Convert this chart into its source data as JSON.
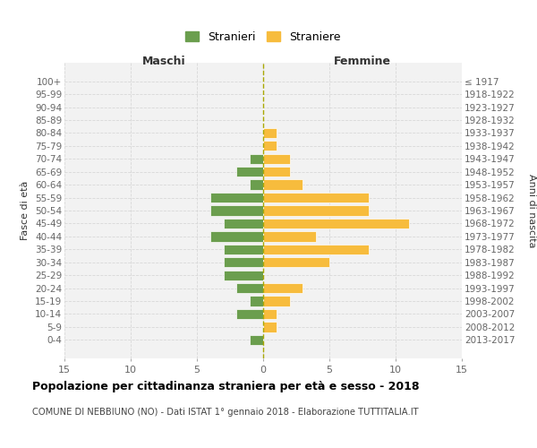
{
  "age_groups": [
    "0-4",
    "5-9",
    "10-14",
    "15-19",
    "20-24",
    "25-29",
    "30-34",
    "35-39",
    "40-44",
    "45-49",
    "50-54",
    "55-59",
    "60-64",
    "65-69",
    "70-74",
    "75-79",
    "80-84",
    "85-89",
    "90-94",
    "95-99",
    "100+"
  ],
  "birth_years": [
    "2013-2017",
    "2008-2012",
    "2003-2007",
    "1998-2002",
    "1993-1997",
    "1988-1992",
    "1983-1987",
    "1978-1982",
    "1973-1977",
    "1968-1972",
    "1963-1967",
    "1958-1962",
    "1953-1957",
    "1948-1952",
    "1943-1947",
    "1938-1942",
    "1933-1937",
    "1928-1932",
    "1923-1927",
    "1918-1922",
    "≤ 1917"
  ],
  "males": [
    1,
    0,
    2,
    1,
    2,
    3,
    3,
    3,
    4,
    3,
    4,
    4,
    1,
    2,
    1,
    0,
    0,
    0,
    0,
    0,
    0
  ],
  "females": [
    0,
    1,
    1,
    2,
    3,
    0,
    5,
    8,
    4,
    11,
    8,
    8,
    3,
    2,
    2,
    1,
    1,
    0,
    0,
    0,
    0
  ],
  "male_color": "#6b9e4e",
  "female_color": "#f7bc3d",
  "bar_edge_color": "#ffffff",
  "grid_color": "#d8d8d8",
  "center_line_color": "#aaa800",
  "xlim": 15,
  "title": "Popolazione per cittadinanza straniera per età e sesso - 2018",
  "subtitle": "COMUNE DI NEBBIUNO (NO) - Dati ISTAT 1° gennaio 2018 - Elaborazione TUTTITALIA.IT",
  "ylabel_left": "Fasce di età",
  "ylabel_right": "Anni di nascita",
  "label_maschi": "Maschi",
  "label_femmine": "Femmine",
  "legend_stranieri": "Stranieri",
  "legend_straniere": "Straniere",
  "bg_color": "#ffffff",
  "plot_bg_color": "#f2f2f2"
}
